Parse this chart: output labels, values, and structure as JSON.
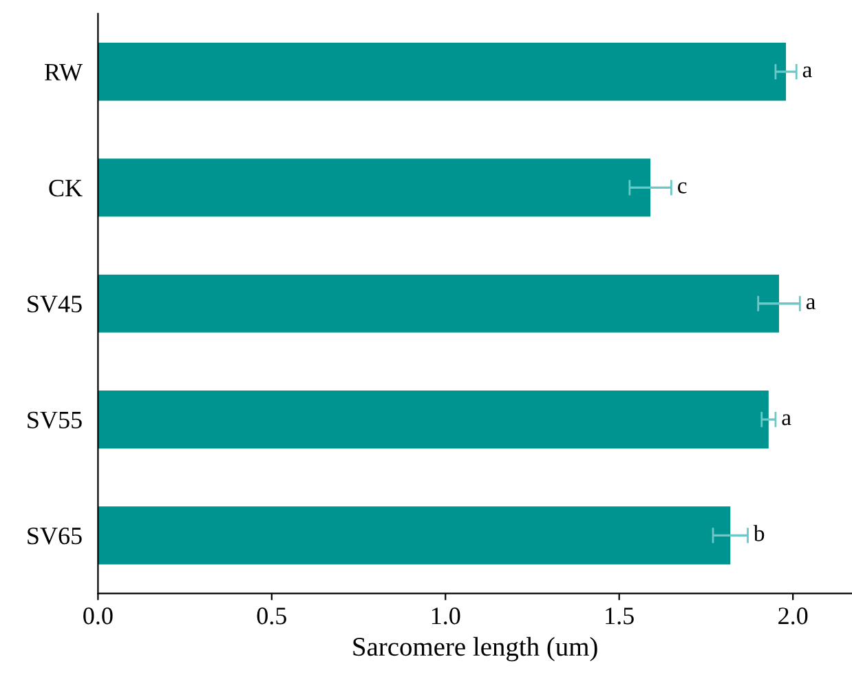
{
  "chart_data": {
    "type": "bar",
    "orientation": "horizontal",
    "xlabel": "Sarcomere length (um)",
    "categories": [
      "RW",
      "CK",
      "SV45",
      "SV55",
      "SV65"
    ],
    "values": [
      1.98,
      1.59,
      1.96,
      1.93,
      1.82
    ],
    "errors": [
      0.03,
      0.06,
      0.06,
      0.02,
      0.05
    ],
    "color": "#009490",
    "xlim": [
      0,
      2.17
    ],
    "xticks": [
      {
        "value": 0,
        "label": "0.0"
      },
      0.5,
      {
        "value": 1,
        "label": "1.0"
      },
      1.5,
      {
        "value": 2,
        "label": "2.0"
      }
    ],
    "grid": false,
    "annotations": [
      {
        "text": "a",
        "x": 2.01,
        "y": "RW"
      },
      {
        "text": "c",
        "x": 1.65,
        "y": "CK"
      },
      {
        "text": "a",
        "x": 2.02,
        "y": "SV45"
      },
      {
        "text": "a",
        "x": 1.95,
        "y": "SV55"
      },
      {
        "text": "b",
        "x": 1.87,
        "y": "SV65"
      }
    ]
  }
}
